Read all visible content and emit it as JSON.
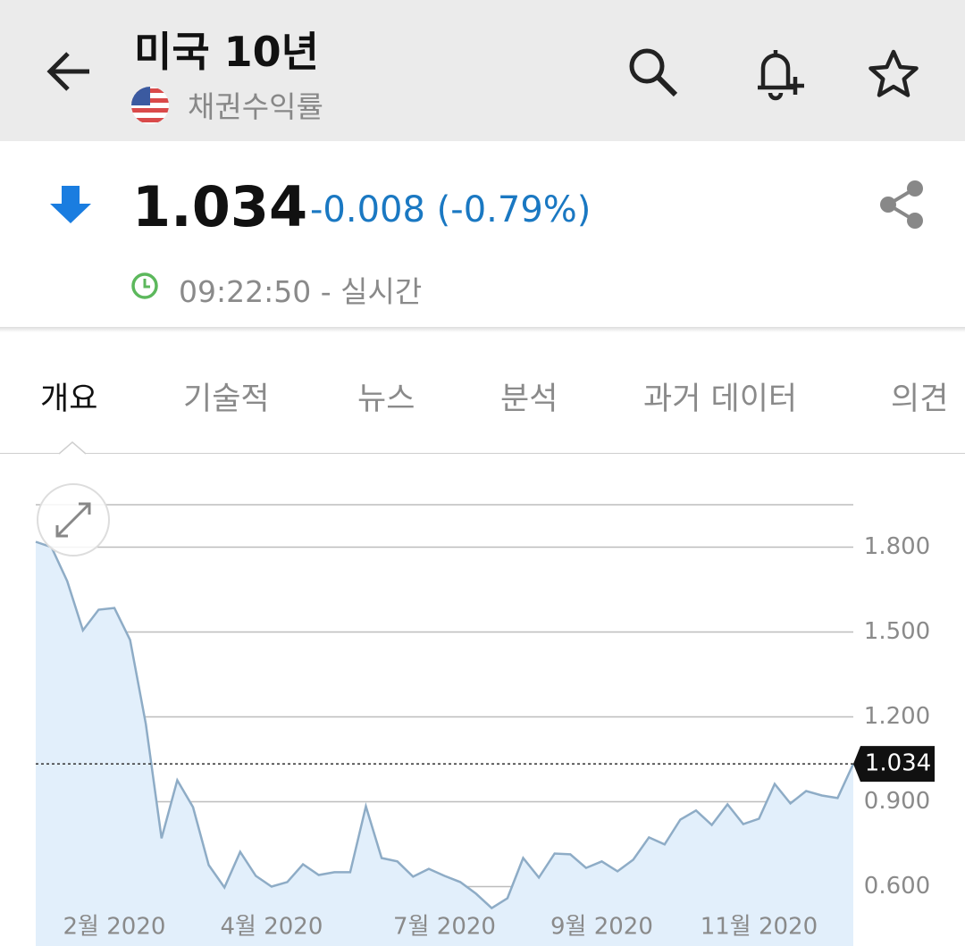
{
  "header": {
    "title": "미국 10년",
    "subtitle": "채권수익률"
  },
  "quote": {
    "price": "1.034",
    "change": "-0.008 (-0.79%)",
    "time": "09:22:50 - 실시간"
  },
  "tabs": [
    "개요",
    "기술적",
    "뉴스",
    "분석",
    "과거 데이터",
    "의견"
  ],
  "chart_data": {
    "type": "area",
    "categories": [
      null,
      null,
      null,
      null,
      null,
      "2월 2020",
      null,
      null,
      null,
      null,
      null,
      null,
      null,
      null,
      null,
      "4월 2020",
      null,
      null,
      null,
      null,
      null,
      null,
      null,
      null,
      null,
      null,
      "7월 2020",
      null,
      null,
      null,
      null,
      null,
      null,
      null,
      null,
      null,
      "9월 2020",
      null,
      null,
      null,
      null,
      null,
      null,
      null,
      null,
      null,
      "11월 2020",
      null,
      null,
      null,
      null,
      null,
      null
    ],
    "values": [
      1.819,
      1.8,
      1.68,
      1.506,
      1.579,
      1.585,
      1.472,
      1.175,
      0.771,
      0.976,
      0.881,
      0.676,
      0.597,
      0.723,
      0.638,
      0.6,
      0.616,
      0.679,
      0.641,
      0.651,
      0.651,
      0.884,
      0.701,
      0.689,
      0.635,
      0.663,
      0.638,
      0.616,
      0.575,
      0.524,
      0.559,
      0.701,
      0.632,
      0.717,
      0.714,
      0.666,
      0.689,
      0.654,
      0.695,
      0.774,
      0.749,
      0.837,
      0.869,
      0.818,
      0.891,
      0.821,
      0.84,
      0.963,
      0.894,
      0.938,
      0.922,
      0.913,
      1.034
    ],
    "color": "#8eacc6",
    "fill": "#e2effb",
    "ylim": [
      0.39,
      1.95
    ],
    "yticks": [
      {
        "value": 0.6,
        "label": "0.600"
      },
      {
        "value": 0.9,
        "label": "0.900"
      },
      {
        "value": 1.2,
        "label": "1.200"
      },
      {
        "value": 1.5,
        "label": "1.500"
      },
      {
        "value": 1.8,
        "label": "1.800"
      }
    ],
    "grid": true,
    "current_value": 1.034
  }
}
